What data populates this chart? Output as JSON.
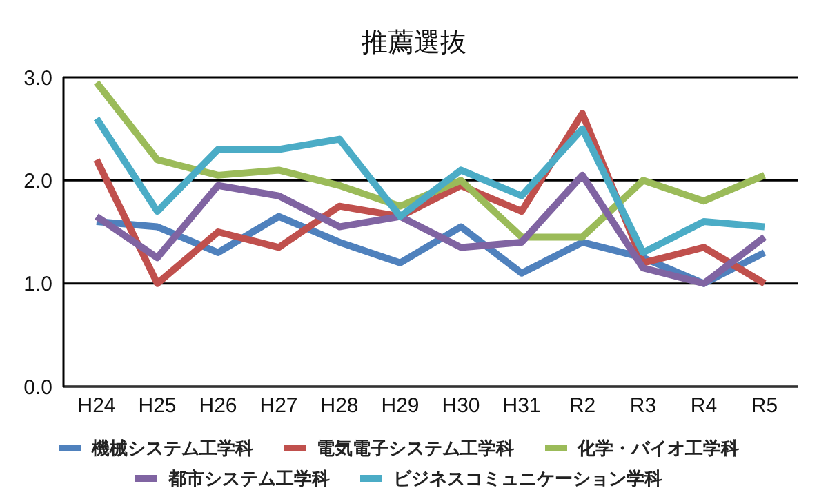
{
  "chart_data": {
    "type": "line",
    "title": "推薦選抜",
    "categories": [
      "H24",
      "H25",
      "H26",
      "H27",
      "H28",
      "H29",
      "H30",
      "H31",
      "R2",
      "R3",
      "R4",
      "R5"
    ],
    "series": [
      {
        "name": "機械システム工学科",
        "color": "#4f81bd",
        "values": [
          1.6,
          1.55,
          1.3,
          1.65,
          1.4,
          1.2,
          1.55,
          1.1,
          1.4,
          1.25,
          1.0,
          1.3
        ]
      },
      {
        "name": "電気電子システム工学科",
        "color": "#c0504d",
        "values": [
          2.2,
          1.0,
          1.5,
          1.35,
          1.75,
          1.65,
          1.95,
          1.7,
          2.65,
          1.2,
          1.35,
          1.0
        ]
      },
      {
        "name": "化学・バイオ工学科",
        "color": "#9bbb59",
        "values": [
          2.95,
          2.2,
          2.05,
          2.1,
          1.95,
          1.75,
          2.0,
          1.45,
          1.45,
          2.0,
          1.8,
          2.05
        ]
      },
      {
        "name": "都市システム工学科",
        "color": "#8064a2",
        "values": [
          1.65,
          1.25,
          1.95,
          1.85,
          1.55,
          1.65,
          1.35,
          1.4,
          2.05,
          1.15,
          1.0,
          1.45
        ]
      },
      {
        "name": "ビジネスコミュニケーション学科",
        "color": "#4bacc6",
        "values": [
          2.6,
          1.7,
          2.3,
          2.3,
          2.4,
          1.65,
          2.1,
          1.85,
          2.5,
          1.3,
          1.6,
          1.55
        ]
      }
    ],
    "ylim": [
      0,
      3
    ],
    "yticks": [
      {
        "value": 0,
        "label": "0.0"
      },
      {
        "value": 1,
        "label": "1.0"
      },
      {
        "value": 2,
        "label": "2.0"
      },
      {
        "value": 3,
        "label": "3.0"
      }
    ],
    "grid": "y",
    "legend": "bottom",
    "marker": "none",
    "line_style": "solid"
  }
}
